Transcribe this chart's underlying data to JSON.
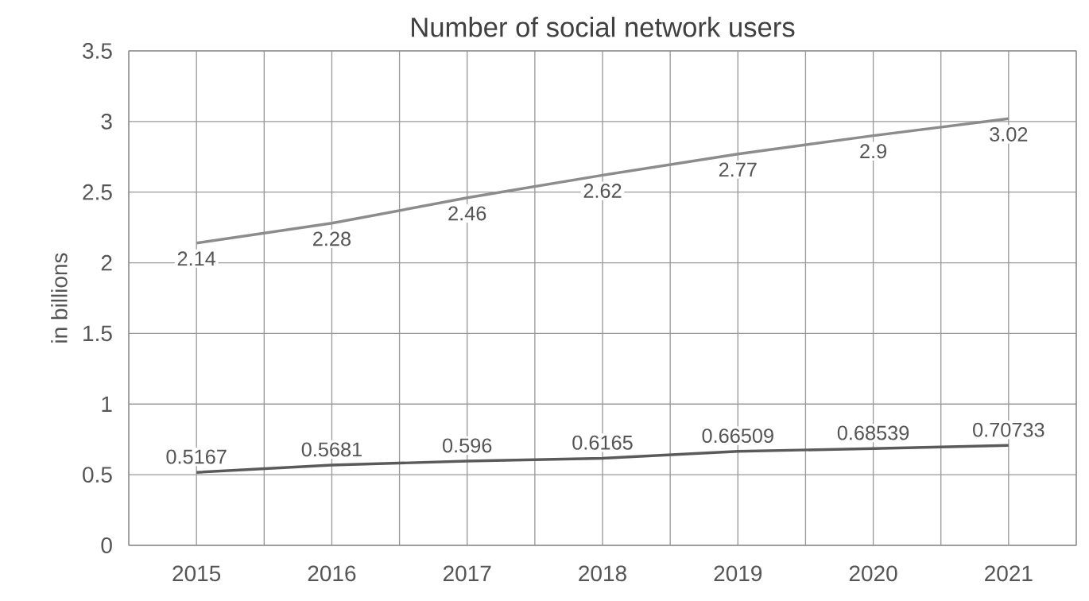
{
  "chart_data": {
    "type": "line",
    "title": "Number of social network users",
    "ylabel": "in billions",
    "categories": [
      "2015",
      "2016",
      "2017",
      "2018",
      "2019",
      "2020",
      "2021"
    ],
    "series": [
      {
        "color": "#8c8c8c",
        "values": [
          2.14,
          2.28,
          2.46,
          2.62,
          2.77,
          2.9,
          3.02
        ]
      },
      {
        "color": "#5a5a5a",
        "values": [
          0.5167,
          0.5681,
          0.596,
          0.6165,
          0.66509,
          0.68539,
          0.70733
        ]
      }
    ],
    "ylim": [
      0,
      3.5
    ],
    "yticks": [
      0,
      0.5,
      1,
      1.5,
      2,
      2.5,
      3,
      3.5
    ],
    "grid": true,
    "data_labels": true,
    "line_style": "solid",
    "marker": "none"
  }
}
